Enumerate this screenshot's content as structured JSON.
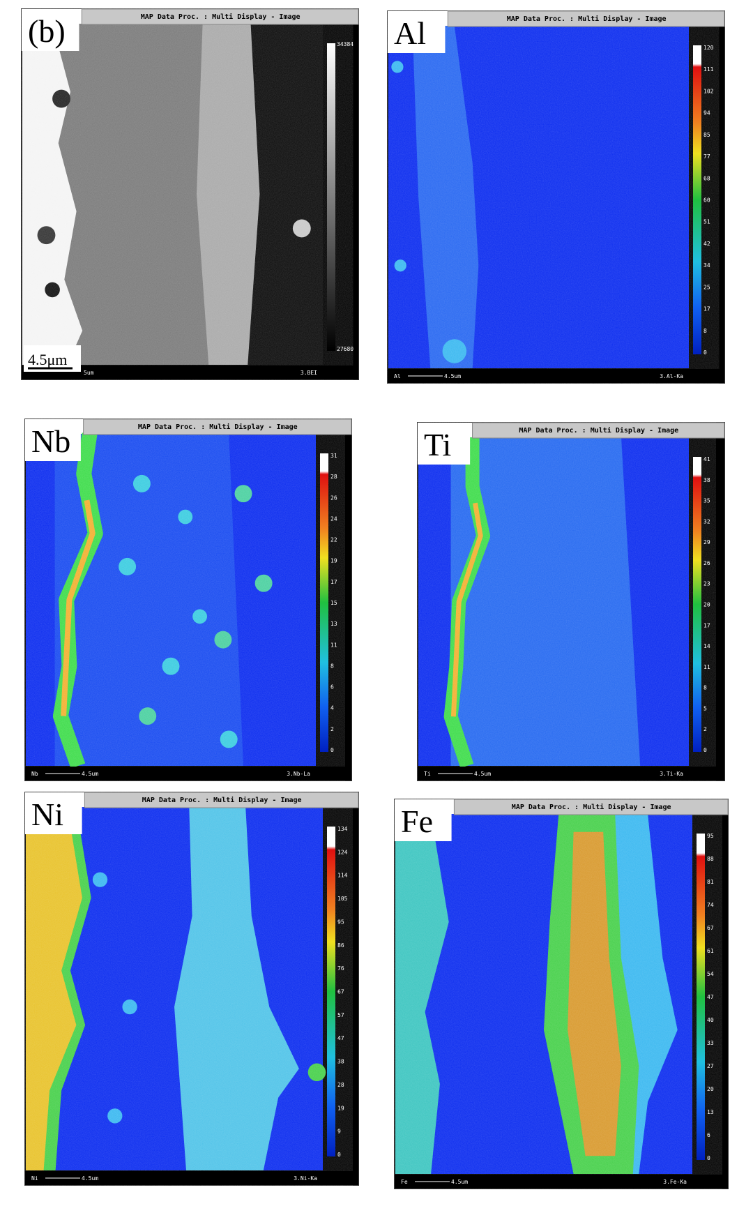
{
  "panels": [
    {
      "label": "(b)",
      "title_bar": "MAP Data Proc. : Multi Display - Image",
      "scale_top": 34384,
      "scale_bottom": 27680,
      "scale_label": "4.5μm",
      "footer_left": "5um",
      "footer_right": "3.BEI"
    },
    {
      "label": "Al",
      "title_bar": "MAP Data Proc. : Multi Display - Image",
      "scale_ticks": [
        120,
        111,
        102,
        94,
        85,
        77,
        68,
        60,
        51,
        42,
        34,
        25,
        17,
        8,
        0
      ],
      "footer_left": "Al",
      "footer_scale": "4.5um",
      "footer_right": "3.Al-Ka"
    },
    {
      "label": "Nb",
      "title_bar": "MAP Data Proc. : Multi Display - Image",
      "scale_ticks": [
        31,
        28,
        26,
        24,
        22,
        19,
        17,
        15,
        13,
        11,
        8,
        6,
        4,
        2,
        0
      ],
      "footer_left": "Nb",
      "footer_scale": "4.5um",
      "footer_right": "3.Nb-La"
    },
    {
      "label": "Ti",
      "title_bar": "MAP Data Proc. : Multi Display - Image",
      "scale_ticks": [
        41,
        38,
        35,
        32,
        29,
        26,
        23,
        20,
        17,
        14,
        11,
        8,
        5,
        2,
        0
      ],
      "footer_left": "Ti",
      "footer_scale": "4.5um",
      "footer_right": "3.Ti-Ka"
    },
    {
      "label": "Ni",
      "title_bar": "MAP Data Proc. : Multi Display - Image",
      "scale_ticks": [
        134,
        124,
        114,
        105,
        95,
        86,
        76,
        67,
        57,
        47,
        38,
        28,
        19,
        9,
        0
      ],
      "footer_left": "Ni",
      "footer_scale": "4.5um",
      "footer_right": "3.Ni-Ka"
    },
    {
      "label": "Fe",
      "title_bar": "MAP Data Proc. : Multi Display - Image",
      "scale_ticks": [
        95,
        88,
        81,
        74,
        67,
        61,
        54,
        47,
        40,
        33,
        27,
        20,
        13,
        6,
        0
      ],
      "footer_left": "Fe",
      "footer_scale": "4.5um",
      "footer_right": "3.Fe-Ka"
    }
  ]
}
